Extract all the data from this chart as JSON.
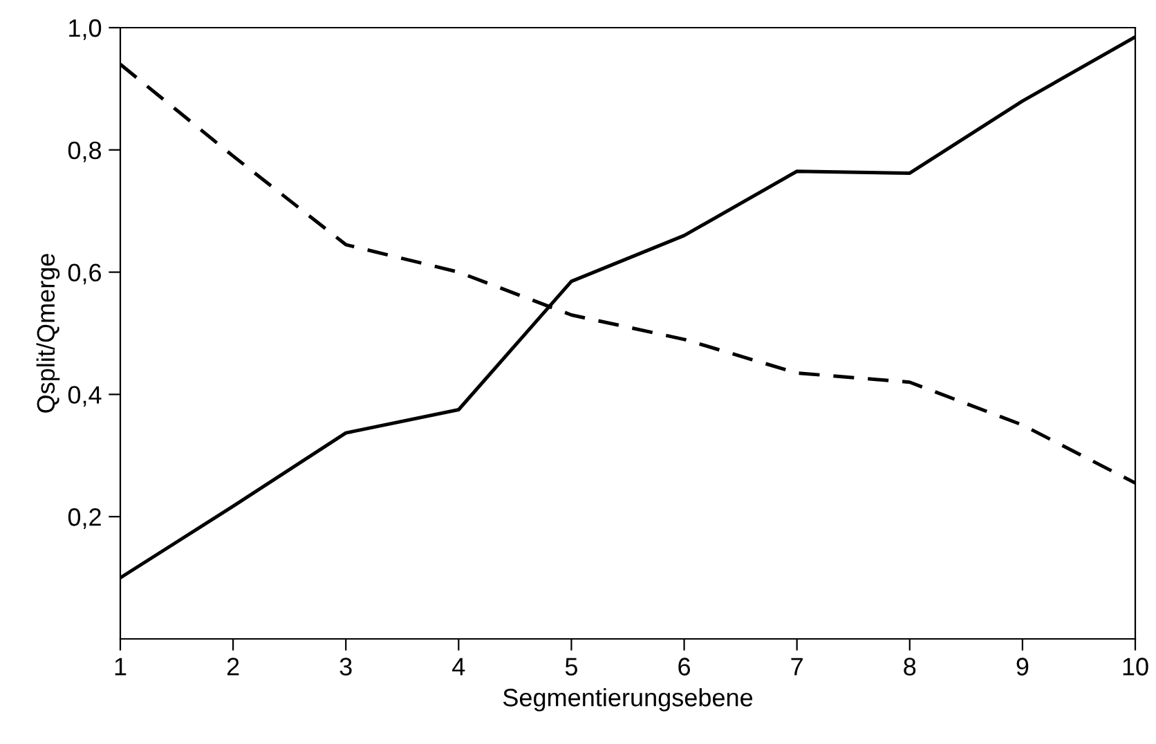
{
  "chart_data": {
    "type": "line",
    "xlabel": "Segmentierungsebene",
    "ylabel": "Qsplit/Qmerge",
    "x": [
      1,
      2,
      3,
      4,
      5,
      6,
      7,
      8,
      9,
      10
    ],
    "series": [
      {
        "color": "#000000",
        "line_style": "solid",
        "values": [
          0.1,
          0.217,
          0.337,
          0.375,
          0.585,
          0.66,
          0.765,
          0.762,
          0.88,
          0.985
        ]
      },
      {
        "color": "#000000",
        "line_style": "dashed",
        "values": [
          0.94,
          0.79,
          0.645,
          0.6,
          0.53,
          0.49,
          0.435,
          0.42,
          0.35,
          0.255
        ]
      }
    ],
    "xlim": [
      1,
      10
    ],
    "xticks": [
      1,
      2,
      3,
      4,
      5,
      6,
      7,
      8,
      9,
      10
    ],
    "ylim": [
      0,
      1
    ],
    "yticks": [
      {
        "value": 0.2,
        "label": "0,2"
      },
      {
        "value": 0.4,
        "label": "0,4"
      },
      {
        "value": 0.6,
        "label": "0,6"
      },
      {
        "value": 0.8,
        "label": "0,8"
      },
      {
        "value": 1.0,
        "label": "1,0"
      }
    ],
    "grid": false,
    "legend": false,
    "marker": "none"
  }
}
